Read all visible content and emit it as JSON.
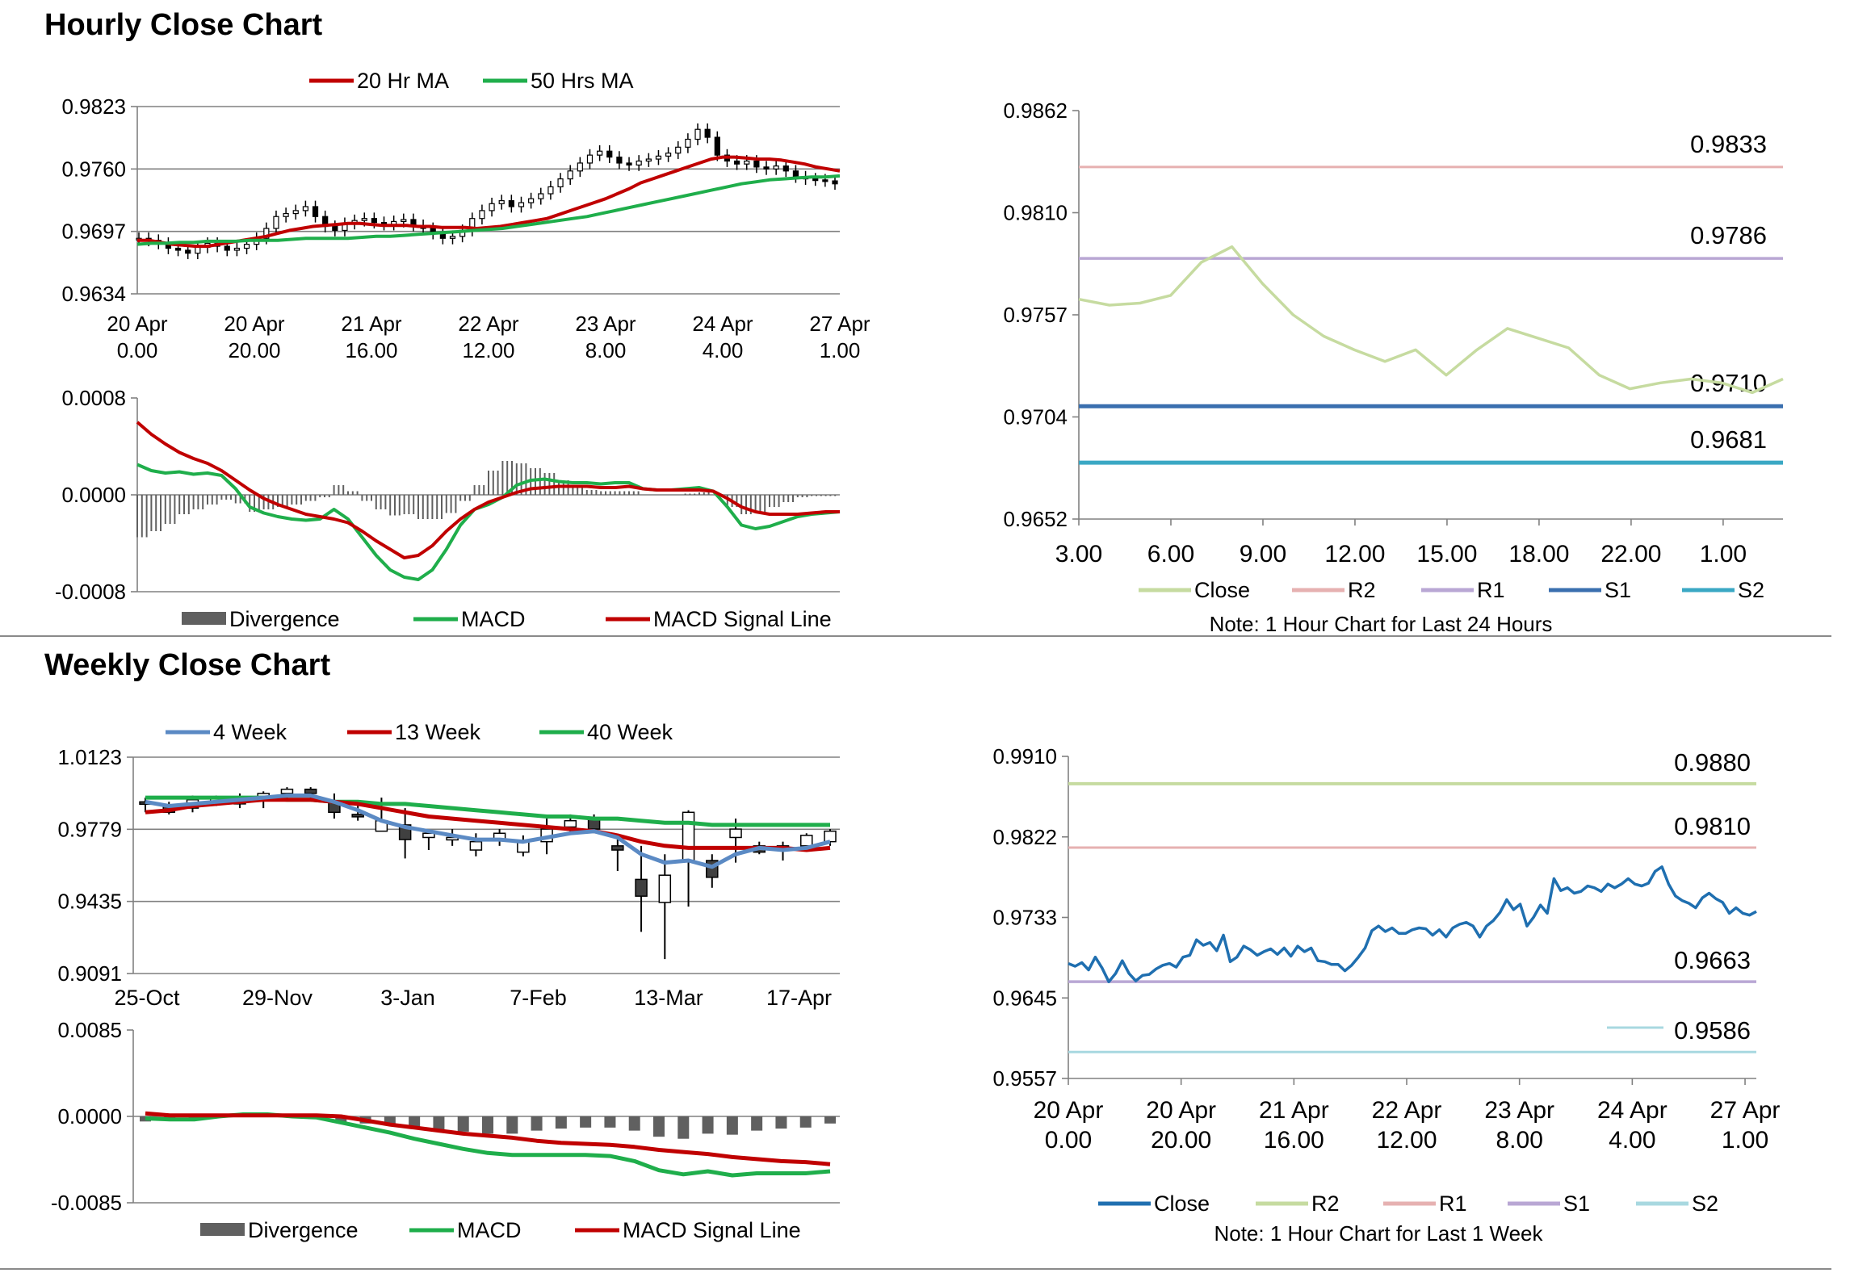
{
  "hourly_section": {
    "title": "Hourly Close Chart"
  },
  "weekly_section": {
    "title": "Weekly Close Chart"
  },
  "colors": {
    "ma20": "#c00000",
    "ma50": "#1fae4b",
    "divergence": "#606060",
    "macd": "#1fae4b",
    "signal": "#c00000",
    "close_h": "#c6dba0",
    "r2_h": "#e6b1b1",
    "r1_h": "#b9a7d4",
    "s1_h": "#3a6faf",
    "s2_h": "#3aa8c4",
    "close_w": "#1f6fb0",
    "r2_w": "#c6dba0",
    "r1_w": "#e6b1b1",
    "s1_w": "#b9a7d4",
    "s2_w": "#a8d8e0",
    "wk4": "#5b8ac4",
    "wk13": "#c00000",
    "wk40": "#1fae4b"
  },
  "chart_data": [
    {
      "id": "hourly_candles",
      "type": "candlestick",
      "ylim": [
        0.9634,
        0.9823
      ],
      "ticks": [
        "0.9823",
        "0.9760",
        "0.9697",
        "0.9634"
      ],
      "x_labels": [
        [
          "20 Apr",
          "0.00"
        ],
        [
          "20 Apr",
          "20.00"
        ],
        [
          "21 Apr",
          "16.00"
        ],
        [
          "22 Apr",
          "12.00"
        ],
        [
          "23 Apr",
          "8.00"
        ],
        [
          "24 Apr",
          "4.00"
        ],
        [
          "27 Apr",
          "1.00"
        ]
      ],
      "legend": [
        "20 Hr MA",
        "50 Hrs MA"
      ],
      "close": [
        0.969,
        0.9688,
        0.9685,
        0.968,
        0.9678,
        0.9675,
        0.9681,
        0.9685,
        0.9682,
        0.9678,
        0.968,
        0.9684,
        0.969,
        0.97,
        0.9712,
        0.9715,
        0.9718,
        0.9722,
        0.9712,
        0.9702,
        0.9698,
        0.9705,
        0.9708,
        0.971,
        0.9706,
        0.9704,
        0.9707,
        0.9709,
        0.9703,
        0.97,
        0.9695,
        0.969,
        0.9692,
        0.9698,
        0.971,
        0.9718,
        0.9725,
        0.9728,
        0.9722,
        0.9726,
        0.973,
        0.9735,
        0.9742,
        0.975,
        0.9758,
        0.9766,
        0.9774,
        0.9778,
        0.9772,
        0.9766,
        0.9764,
        0.9768,
        0.977,
        0.9773,
        0.9776,
        0.9782,
        0.979,
        0.98,
        0.9792,
        0.9774,
        0.9768,
        0.9765,
        0.9768,
        0.9762,
        0.976,
        0.9763,
        0.9758,
        0.9752,
        0.975,
        0.9749,
        0.9748,
        0.9745
      ],
      "ma20": [
        0.9688,
        0.9688,
        0.9686,
        0.9684,
        0.9683,
        0.9682,
        0.9682,
        0.9684,
        0.9686,
        0.9688,
        0.969,
        0.9692,
        0.9695,
        0.9698,
        0.97,
        0.9702,
        0.9703,
        0.9704,
        0.9705,
        0.9705,
        0.9704,
        0.9703,
        0.9703,
        0.9703,
        0.9702,
        0.9702,
        0.9701,
        0.9701,
        0.9701,
        0.97,
        0.9701,
        0.9702,
        0.9704,
        0.9706,
        0.9708,
        0.971,
        0.9714,
        0.9718,
        0.9722,
        0.9726,
        0.973,
        0.9735,
        0.974,
        0.9746,
        0.975,
        0.9754,
        0.9758,
        0.9762,
        0.9766,
        0.977,
        0.9772,
        0.9772,
        0.9771,
        0.977,
        0.977,
        0.9769,
        0.9767,
        0.9765,
        0.9762,
        0.976,
        0.9758
      ],
      "ma50": [
        0.9684,
        0.9685,
        0.9685,
        0.9686,
        0.9686,
        0.9687,
        0.9687,
        0.9687,
        0.9688,
        0.9688,
        0.9688,
        0.9689,
        0.969,
        0.969,
        0.969,
        0.969,
        0.9691,
        0.9692,
        0.9692,
        0.9693,
        0.9694,
        0.9695,
        0.9696,
        0.9697,
        0.9698,
        0.9699,
        0.97,
        0.9702,
        0.9704,
        0.9706,
        0.9708,
        0.971,
        0.9712,
        0.9715,
        0.9718,
        0.9721,
        0.9724,
        0.9727,
        0.973,
        0.9733,
        0.9736,
        0.9739,
        0.9742,
        0.9745,
        0.9747,
        0.9749,
        0.975,
        0.9751,
        0.9752,
        0.9752,
        0.9753
      ]
    },
    {
      "id": "hourly_macd",
      "type": "bar+line",
      "ylim": [
        -0.0008,
        0.0008
      ],
      "ticks": [
        "0.0008",
        "0.0000",
        "-0.0008"
      ],
      "legend": [
        "Divergence",
        "MACD",
        "MACD Signal Line"
      ],
      "macd": [
        0.00025,
        0.0002,
        0.00018,
        0.00019,
        0.00017,
        0.00018,
        0.00016,
        5e-05,
        -0.0001,
        -0.00015,
        -0.00018,
        -0.0002,
        -0.00021,
        -0.0002,
        -0.00012,
        -0.0002,
        -0.00035,
        -0.0005,
        -0.00062,
        -0.00068,
        -0.0007,
        -0.00062,
        -0.00045,
        -0.00025,
        -0.00012,
        -8e-05,
        -2e-05,
        8e-05,
        0.00012,
        0.00013,
        0.00011,
        0.0001,
        0.0001,
        9e-05,
        0.0001,
        0.0001,
        5e-05,
        4e-05,
        4e-05,
        5e-05,
        6e-05,
        3e-05,
        -0.0001,
        -0.00025,
        -0.00028,
        -0.00026,
        -0.00022,
        -0.00018,
        -0.00016,
        -0.00015,
        -0.00014
      ],
      "signal": [
        0.0006,
        0.0005,
        0.00042,
        0.00035,
        0.0003,
        0.00026,
        0.0002,
        0.00012,
        4e-05,
        -3e-05,
        -8e-05,
        -0.00012,
        -0.00016,
        -0.00018,
        -0.0002,
        -0.00023,
        -0.0003,
        -0.00038,
        -0.00045,
        -0.00052,
        -0.0005,
        -0.00042,
        -0.0003,
        -0.0002,
        -0.00012,
        -6e-05,
        -2e-05,
        2e-05,
        5e-05,
        6e-05,
        7e-05,
        7e-05,
        7e-05,
        6e-05,
        6e-05,
        7e-05,
        5e-05,
        4e-05,
        4e-05,
        4e-05,
        4e-05,
        3e-05,
        -3e-05,
        -0.0001,
        -0.00014,
        -0.00016,
        -0.00016,
        -0.00016,
        -0.00015,
        -0.00014,
        -0.00014
      ],
      "divergence": [
        -0.00035,
        -0.0003,
        -0.00024,
        -0.00016,
        -0.00012,
        -8e-05,
        -4e-05,
        -7e-05,
        -0.00014,
        -0.00012,
        -0.0001,
        -8e-05,
        -5e-05,
        -2e-05,
        8e-05,
        3e-05,
        -5e-05,
        -0.00012,
        -0.00017,
        -0.00016,
        -0.0002,
        -0.0002,
        -0.00015,
        -5e-05,
        8e-05,
        0.0002,
        0.00028,
        0.00026,
        0.00022,
        0.00018,
        0.00012,
        8e-05,
        4e-05,
        3e-05,
        3e-05,
        3e-05,
        0.0,
        0.0,
        0.0,
        1e-05,
        2e-05,
        0.0,
        -0.0001,
        -0.00016,
        -0.00014,
        -0.0001,
        -6e-05,
        -2e-05,
        -1e-05,
        -1e-05,
        0.0
      ]
    },
    {
      "id": "hourly_sr",
      "type": "line",
      "ylim": [
        0.9652,
        0.9862
      ],
      "ticks": [
        "0.9862",
        "0.9810",
        "0.9757",
        "0.9704",
        "0.9652"
      ],
      "x_labels": [
        "3.00",
        "6.00",
        "9.00",
        "12.00",
        "15.00",
        "18.00",
        "22.00",
        "1.00"
      ],
      "legend": [
        "Close",
        "R2",
        "R1",
        "S1",
        "S2"
      ],
      "close": [
        0.9765,
        0.9762,
        0.9763,
        0.9767,
        0.9784,
        0.9792,
        0.9773,
        0.9757,
        0.9746,
        0.9739,
        0.9733,
        0.9739,
        0.9726,
        0.9739,
        0.975,
        0.9745,
        0.974,
        0.9726,
        0.9719,
        0.9722,
        0.9724,
        0.9722,
        0.9717,
        0.9724
      ],
      "levels": {
        "R2": 0.9833,
        "R1": 0.9786,
        "S1": 0.971,
        "S2": 0.9681
      },
      "level_labels": {
        "R2": "0.9833",
        "R1": "0.9786",
        "S1": "0.9710",
        "S2": "0.9681"
      },
      "note": "Note: 1 Hour Chart for Last 24 Hours"
    },
    {
      "id": "weekly_candles",
      "type": "candlestick",
      "ylim": [
        0.9091,
        1.0123
      ],
      "ticks": [
        "1.0123",
        "0.9779",
        "0.9435",
        "0.9091"
      ],
      "x_labels": [
        "25-Oct",
        "29-Nov",
        "3-Jan",
        "7-Feb",
        "13-Mar",
        "17-Apr"
      ],
      "legend": [
        "4 Week",
        "13 Week",
        "40 Week"
      ],
      "candles": [
        [
          0.991,
          0.993,
          0.986,
          0.99
        ],
        [
          0.989,
          0.991,
          0.985,
          0.986
        ],
        [
          0.988,
          0.994,
          0.986,
          0.992
        ],
        [
          0.991,
          0.994,
          0.989,
          0.993
        ],
        [
          0.993,
          0.995,
          0.988,
          0.99
        ],
        [
          0.992,
          0.996,
          0.988,
          0.995
        ],
        [
          0.995,
          0.998,
          0.992,
          0.997
        ],
        [
          0.997,
          0.998,
          0.992,
          0.995
        ],
        [
          0.991,
          0.995,
          0.983,
          0.986
        ],
        [
          0.985,
          0.99,
          0.982,
          0.984
        ],
        [
          0.977,
          0.993,
          0.977,
          0.982
        ],
        [
          0.98,
          0.988,
          0.964,
          0.973
        ],
        [
          0.974,
          0.976,
          0.968,
          0.976
        ],
        [
          0.974,
          0.978,
          0.97,
          0.974
        ],
        [
          0.968,
          0.976,
          0.965,
          0.972
        ],
        [
          0.973,
          0.978,
          0.97,
          0.976
        ],
        [
          0.967,
          0.975,
          0.965,
          0.972
        ],
        [
          0.972,
          0.983,
          0.966,
          0.978
        ],
        [
          0.979,
          0.985,
          0.976,
          0.982
        ],
        [
          0.983,
          0.985,
          0.977,
          0.978
        ],
        [
          0.97,
          0.974,
          0.958,
          0.968
        ],
        [
          0.954,
          0.97,
          0.929,
          0.946
        ],
        [
          0.943,
          0.966,
          0.916,
          0.956
        ],
        [
          0.963,
          0.987,
          0.941,
          0.986
        ],
        [
          0.963,
          0.966,
          0.95,
          0.955
        ],
        [
          0.974,
          0.983,
          0.962,
          0.978
        ],
        [
          0.97,
          0.972,
          0.966,
          0.967
        ],
        [
          0.97,
          0.972,
          0.963,
          0.969
        ],
        [
          0.97,
          0.976,
          0.968,
          0.975
        ],
        [
          0.972,
          0.978,
          0.97,
          0.977
        ]
      ],
      "wk4": [
        0.991,
        0.989,
        0.99,
        0.991,
        0.992,
        0.993,
        0.994,
        0.994,
        0.991,
        0.987,
        0.982,
        0.979,
        0.977,
        0.975,
        0.973,
        0.973,
        0.972,
        0.974,
        0.976,
        0.977,
        0.974,
        0.966,
        0.962,
        0.963,
        0.96,
        0.966,
        0.969,
        0.968,
        0.969,
        0.972
      ],
      "wk13": [
        0.986,
        0.987,
        0.989,
        0.99,
        0.991,
        0.992,
        0.992,
        0.992,
        0.991,
        0.99,
        0.988,
        0.986,
        0.984,
        0.983,
        0.982,
        0.981,
        0.98,
        0.979,
        0.978,
        0.977,
        0.975,
        0.972,
        0.97,
        0.969,
        0.969,
        0.969,
        0.969,
        0.969,
        0.968,
        0.969
      ],
      "wk40": [
        0.993,
        0.993,
        0.993,
        0.993,
        0.993,
        0.993,
        0.992,
        0.992,
        0.991,
        0.991,
        0.99,
        0.99,
        0.989,
        0.988,
        0.987,
        0.986,
        0.985,
        0.984,
        0.984,
        0.983,
        0.983,
        0.982,
        0.981,
        0.981,
        0.98,
        0.98,
        0.98,
        0.98,
        0.98,
        0.98
      ]
    },
    {
      "id": "weekly_macd",
      "type": "bar+line",
      "ylim": [
        -0.0085,
        0.0085
      ],
      "ticks": [
        "0.0085",
        "0.0000",
        "-0.0085"
      ],
      "legend": [
        "Divergence",
        "MACD",
        "MACD Signal Line"
      ],
      "macd": [
        -0.0002,
        -0.0003,
        -0.0003,
        0.0,
        0.0002,
        0.0002,
        0.0,
        -0.0001,
        -0.0006,
        -0.0011,
        -0.0016,
        -0.0022,
        -0.0027,
        -0.0032,
        -0.0036,
        -0.0038,
        -0.0038,
        -0.0038,
        -0.0038,
        -0.0039,
        -0.0044,
        -0.0053,
        -0.0057,
        -0.0054,
        -0.0058,
        -0.0056,
        -0.0056,
        -0.0056,
        -0.0054
      ],
      "signal": [
        0.0003,
        0.0001,
        0.0001,
        0.0001,
        0.0001,
        0.0001,
        0.0001,
        0.0001,
        0.0,
        -0.0004,
        -0.0008,
        -0.0011,
        -0.0014,
        -0.0017,
        -0.0019,
        -0.0021,
        -0.0024,
        -0.0026,
        -0.0027,
        -0.0028,
        -0.003,
        -0.0033,
        -0.0035,
        -0.0037,
        -0.004,
        -0.0042,
        -0.0044,
        -0.0045,
        -0.0047
      ],
      "divergence": [
        -0.0005,
        -0.0004,
        -0.0004,
        -0.0001,
        0.0001,
        0.0001,
        -0.0001,
        -0.0002,
        -0.0006,
        -0.0007,
        -0.0008,
        -0.0011,
        -0.0013,
        -0.0015,
        -0.0017,
        -0.0017,
        -0.0014,
        -0.0012,
        -0.0011,
        -0.0011,
        -0.0014,
        -0.002,
        -0.0022,
        -0.0017,
        -0.0018,
        -0.0014,
        -0.0012,
        -0.0011,
        -0.0007
      ]
    },
    {
      "id": "weekly_sr",
      "type": "line",
      "ylim": [
        0.9557,
        0.991
      ],
      "ticks": [
        "0.9910",
        "0.9822",
        "0.9733",
        "0.9645",
        "0.9557"
      ],
      "x_labels": [
        [
          "20 Apr",
          "0.00"
        ],
        [
          "20 Apr",
          "20.00"
        ],
        [
          "21 Apr",
          "16.00"
        ],
        [
          "22 Apr",
          "12.00"
        ],
        [
          "23 Apr",
          "8.00"
        ],
        [
          "24 Apr",
          "4.00"
        ],
        [
          "27 Apr",
          "1.00"
        ]
      ],
      "legend": [
        "Close",
        "R2",
        "R1",
        "S1",
        "S2"
      ],
      "close": [
        0.9683,
        0.968,
        0.9684,
        0.9676,
        0.969,
        0.9678,
        0.9663,
        0.9672,
        0.9686,
        0.9672,
        0.9664,
        0.967,
        0.9671,
        0.9677,
        0.9681,
        0.9683,
        0.9679,
        0.969,
        0.9692,
        0.9709,
        0.9703,
        0.9706,
        0.9697,
        0.9714,
        0.9685,
        0.969,
        0.9702,
        0.9698,
        0.9692,
        0.9696,
        0.9699,
        0.9693,
        0.97,
        0.9691,
        0.9702,
        0.9696,
        0.97,
        0.9686,
        0.9685,
        0.9682,
        0.9682,
        0.9675,
        0.9681,
        0.969,
        0.97,
        0.9719,
        0.9724,
        0.9718,
        0.9722,
        0.9716,
        0.9716,
        0.972,
        0.9722,
        0.9721,
        0.9714,
        0.972,
        0.9712,
        0.9722,
        0.9726,
        0.9728,
        0.9724,
        0.9712,
        0.9724,
        0.973,
        0.9739,
        0.9753,
        0.9742,
        0.9748,
        0.9724,
        0.9734,
        0.9747,
        0.9738,
        0.9776,
        0.9763,
        0.9766,
        0.976,
        0.9762,
        0.9768,
        0.9766,
        0.9762,
        0.977,
        0.9766,
        0.977,
        0.9776,
        0.977,
        0.9768,
        0.9771,
        0.9784,
        0.9789,
        0.977,
        0.9757,
        0.9752,
        0.9749,
        0.9744,
        0.9755,
        0.976,
        0.9754,
        0.975,
        0.9738,
        0.9744,
        0.9738,
        0.9736,
        0.974
      ],
      "levels": {
        "R2": 0.988,
        "R1": 0.981,
        "S1": 0.9663,
        "S2": 0.9586
      },
      "level_labels": {
        "R2": "0.9880",
        "R1": "0.9810",
        "S1": "0.9663",
        "S2": "0.9586"
      },
      "note": "Note: 1 Hour Chart for Last 1 Week"
    }
  ]
}
